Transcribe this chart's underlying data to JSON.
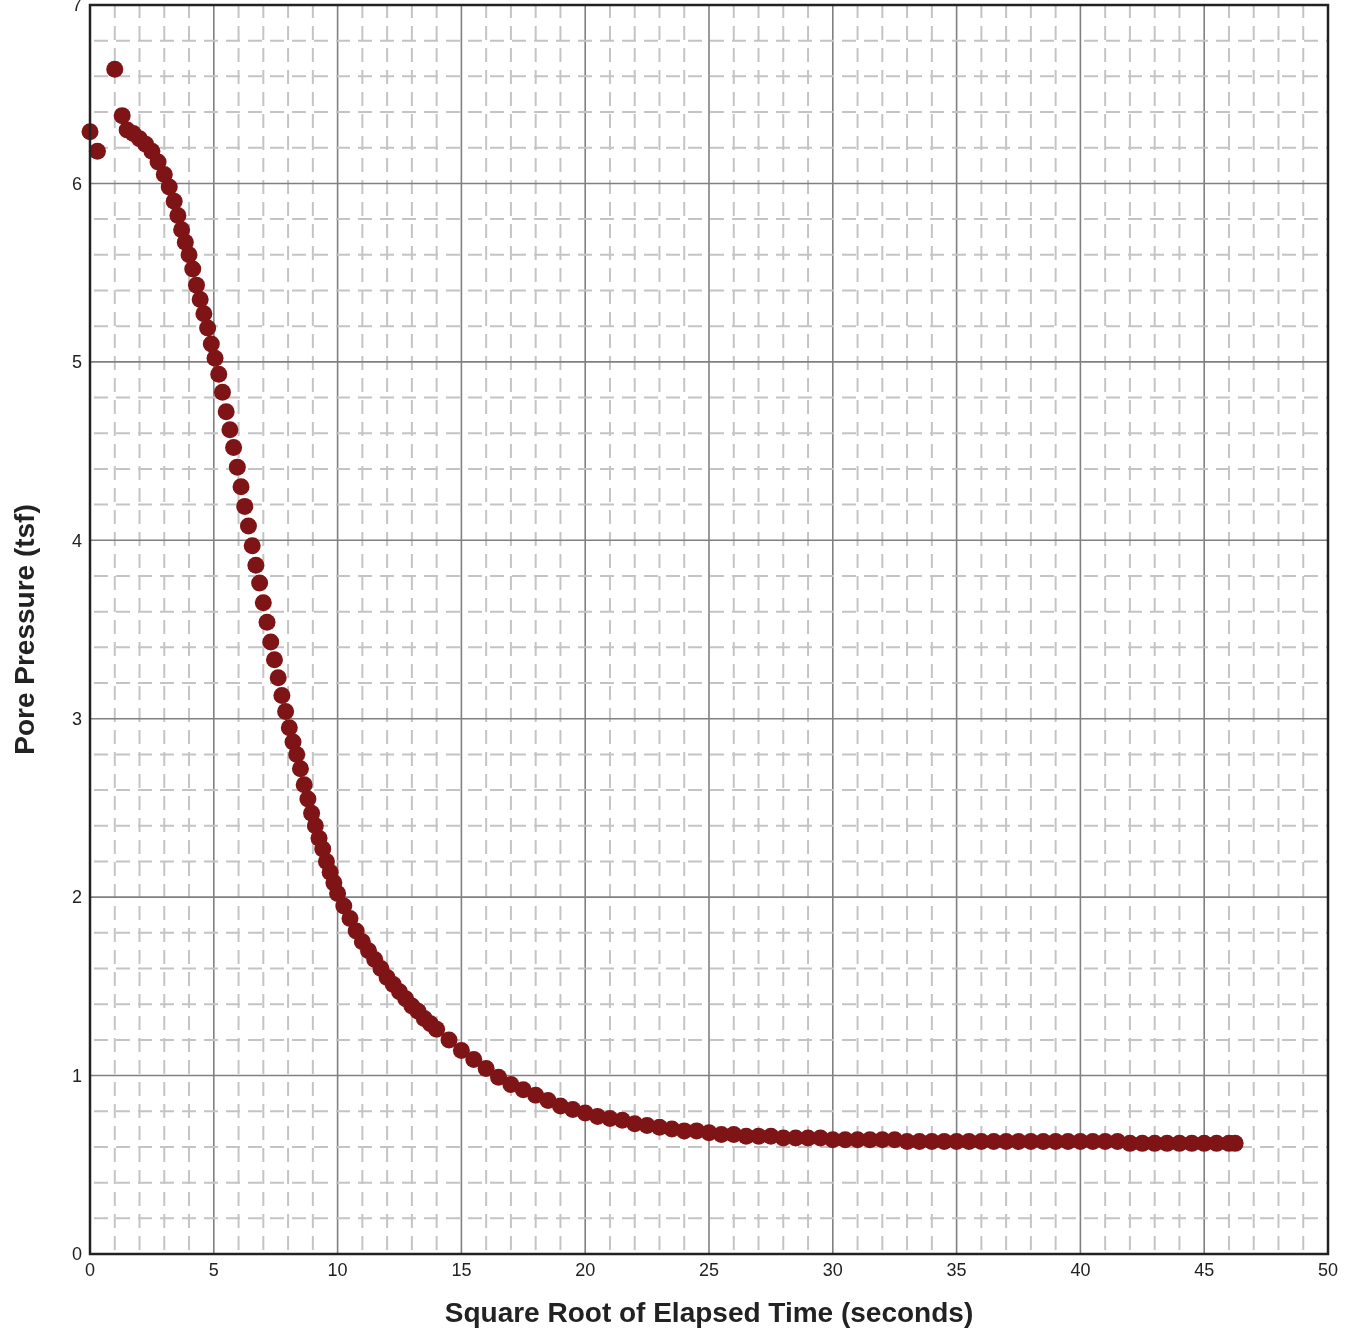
{
  "chart_data": {
    "type": "scatter",
    "xlabel": "Square Root of Elapsed Time (seconds)",
    "ylabel": "Pore Pressure (tsf)",
    "color": "#7f1416",
    "marker": "circle",
    "grid": true,
    "xlim": [
      0,
      50
    ],
    "ylim": [
      0,
      7
    ],
    "xticks": [
      0,
      {
        "value": 1,
        "label": null
      },
      {
        "value": 2,
        "label": null
      },
      {
        "value": 3,
        "label": null
      },
      {
        "value": 4,
        "label": null
      },
      5,
      {
        "value": 6,
        "label": null
      },
      {
        "value": 7,
        "label": null
      },
      {
        "value": 8,
        "label": null
      },
      {
        "value": 9,
        "label": null
      },
      10,
      {
        "value": 11,
        "label": null
      },
      {
        "value": 12,
        "label": null
      },
      {
        "value": 13,
        "label": null
      },
      {
        "value": 14,
        "label": null
      },
      15,
      {
        "value": 16,
        "label": null
      },
      {
        "value": 17,
        "label": null
      },
      {
        "value": 18,
        "label": null
      },
      {
        "value": 19,
        "label": null
      },
      20,
      {
        "value": 21,
        "label": null
      },
      {
        "value": 22,
        "label": null
      },
      {
        "value": 23,
        "label": null
      },
      {
        "value": 24,
        "label": null
      },
      25,
      {
        "value": 26,
        "label": null
      },
      {
        "value": 27,
        "label": null
      },
      {
        "value": 28,
        "label": null
      },
      {
        "value": 29,
        "label": null
      },
      30,
      {
        "value": 31,
        "label": null
      },
      {
        "value": 32,
        "label": null
      },
      {
        "value": 33,
        "label": null
      },
      {
        "value": 34,
        "label": null
      },
      35,
      {
        "value": 36,
        "label": null
      },
      {
        "value": 37,
        "label": null
      },
      {
        "value": 38,
        "label": null
      },
      {
        "value": 39,
        "label": null
      },
      40,
      {
        "value": 41,
        "label": null
      },
      {
        "value": 42,
        "label": null
      },
      {
        "value": 43,
        "label": null
      },
      {
        "value": 44,
        "label": null
      },
      45,
      {
        "value": 46,
        "label": null
      },
      {
        "value": 47,
        "label": null
      },
      {
        "value": 48,
        "label": null
      },
      {
        "value": 49,
        "label": null
      },
      50
    ],
    "yticks": [
      0,
      {
        "value": 0.2,
        "label": null
      },
      {
        "value": 0.4,
        "label": null
      },
      {
        "value": 0.6,
        "label": null
      },
      {
        "value": 0.8,
        "label": null
      },
      1,
      {
        "value": 1.2,
        "label": null
      },
      {
        "value": 1.4,
        "label": null
      },
      {
        "value": 1.6,
        "label": null
      },
      {
        "value": 1.8,
        "label": null
      },
      2,
      {
        "value": 2.2,
        "label": null
      },
      {
        "value": 2.4,
        "label": null
      },
      {
        "value": 2.6,
        "label": null
      },
      {
        "value": 2.8,
        "label": null
      },
      3,
      {
        "value": 3.2,
        "label": null
      },
      {
        "value": 3.4,
        "label": null
      },
      {
        "value": 3.6,
        "label": null
      },
      {
        "value": 3.8,
        "label": null
      },
      4,
      {
        "value": 4.2,
        "label": null
      },
      {
        "value": 4.4,
        "label": null
      },
      {
        "value": 4.6,
        "label": null
      },
      {
        "value": 4.8,
        "label": null
      },
      5,
      {
        "value": 5.2,
        "label": null
      },
      {
        "value": 5.4,
        "label": null
      },
      {
        "value": 5.6,
        "label": null
      },
      {
        "value": 5.8,
        "label": null
      },
      6,
      {
        "value": 6.2,
        "label": null
      },
      {
        "value": 6.4,
        "label": null
      },
      {
        "value": 6.6,
        "label": null
      },
      {
        "value": 6.8,
        "label": null
      },
      7
    ],
    "x": [
      0,
      0.3,
      1.0,
      1.3,
      1.5,
      1.75,
      2.0,
      2.25,
      2.5,
      2.75,
      3.0,
      3.2,
      3.4,
      3.55,
      3.7,
      3.85,
      4.0,
      4.15,
      4.3,
      4.45,
      4.6,
      4.75,
      4.9,
      5.05,
      5.2,
      5.35,
      5.5,
      5.65,
      5.8,
      5.95,
      6.1,
      6.25,
      6.4,
      6.55,
      6.7,
      6.85,
      7.0,
      7.15,
      7.3,
      7.45,
      7.6,
      7.75,
      7.9,
      8.05,
      8.2,
      8.35,
      8.5,
      8.65,
      8.8,
      8.95,
      9.1,
      9.25,
      9.4,
      9.55,
      9.7,
      9.85,
      10.0,
      10.25,
      10.5,
      10.75,
      11,
      11.25,
      11.5,
      11.75,
      12,
      12.25,
      12.5,
      12.75,
      13,
      13.25,
      13.5,
      13.75,
      14,
      14.5,
      15,
      15.5,
      16,
      16.5,
      17,
      17.5,
      18,
      18.5,
      19,
      19.5,
      20,
      20.5,
      21,
      21.5,
      22,
      22.5,
      23,
      23.5,
      24,
      24.5,
      25,
      25.5,
      26,
      26.5,
      27,
      27.5,
      28,
      28.5,
      29,
      29.5,
      30,
      30.5,
      31,
      31.5,
      32,
      32.5,
      33,
      33.5,
      34,
      34.5,
      35,
      35.5,
      36,
      36.5,
      37,
      37.5,
      38,
      38.5,
      39,
      39.5,
      40,
      40.5,
      41,
      41.5,
      42,
      42.5,
      43,
      43.5,
      44,
      44.5,
      45,
      45.5,
      46,
      46.25
    ],
    "values": [
      6.29,
      6.18,
      6.64,
      6.38,
      6.3,
      6.28,
      6.25,
      6.22,
      6.18,
      6.12,
      6.05,
      5.98,
      5.9,
      5.82,
      5.74,
      5.67,
      5.6,
      5.52,
      5.43,
      5.35,
      5.27,
      5.19,
      5.1,
      5.02,
      4.93,
      4.83,
      4.72,
      4.62,
      4.52,
      4.41,
      4.3,
      4.19,
      4.08,
      3.97,
      3.86,
      3.76,
      3.65,
      3.54,
      3.43,
      3.33,
      3.23,
      3.13,
      3.04,
      2.95,
      2.87,
      2.8,
      2.72,
      2.63,
      2.55,
      2.47,
      2.4,
      2.33,
      2.27,
      2.2,
      2.14,
      2.08,
      2.02,
      1.95,
      1.88,
      1.81,
      1.75,
      1.7,
      1.65,
      1.6,
      1.55,
      1.51,
      1.47,
      1.43,
      1.39,
      1.36,
      1.32,
      1.29,
      1.26,
      1.2,
      1.14,
      1.09,
      1.04,
      0.99,
      0.95,
      0.92,
      0.89,
      0.86,
      0.83,
      0.81,
      0.79,
      0.77,
      0.76,
      0.75,
      0.73,
      0.72,
      0.71,
      0.7,
      0.69,
      0.69,
      0.68,
      0.67,
      0.67,
      0.66,
      0.66,
      0.66,
      0.65,
      0.65,
      0.65,
      0.65,
      0.64,
      0.64,
      0.64,
      0.64,
      0.64,
      0.64,
      0.63,
      0.63,
      0.63,
      0.63,
      0.63,
      0.63,
      0.63,
      0.63,
      0.63,
      0.63,
      0.63,
      0.63,
      0.63,
      0.63,
      0.63,
      0.63,
      0.63,
      0.63,
      0.62,
      0.62,
      0.62,
      0.62,
      0.62,
      0.62,
      0.62,
      0.62,
      0.62,
      0.62
    ]
  }
}
